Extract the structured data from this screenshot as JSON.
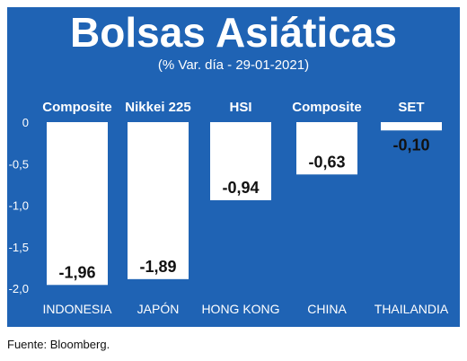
{
  "title": "Bolsas Asiáticas",
  "subtitle": "(% Var. día - 29-01-2021)",
  "source": "Fuente: Bloomberg.",
  "colors": {
    "background": "#1f63b4",
    "bar": "#ffffff",
    "text": "#ffffff",
    "label": "#111111"
  },
  "chart_data": {
    "type": "bar",
    "categories": [
      "INDONESIA",
      "JAPÓN",
      "HONG KONG",
      "CHINA",
      "THAILANDIA"
    ],
    "index_names": [
      "Composite",
      "Nikkei 225",
      "HSI",
      "Composite",
      "SET"
    ],
    "values": [
      -1.96,
      -1.89,
      -0.94,
      -0.63,
      -0.1
    ],
    "value_labels": [
      "-1,96",
      "-1,89",
      "-0,94",
      "-0,63",
      "-0,10"
    ],
    "yticks": [
      0,
      -0.5,
      -1.0,
      -1.5,
      -2.0
    ],
    "ytick_labels": [
      "0",
      "-0,5",
      "-1,0",
      "-1,5",
      "-2,0"
    ],
    "ylim": [
      -2.0,
      0
    ],
    "grid": false,
    "legend": "none"
  }
}
